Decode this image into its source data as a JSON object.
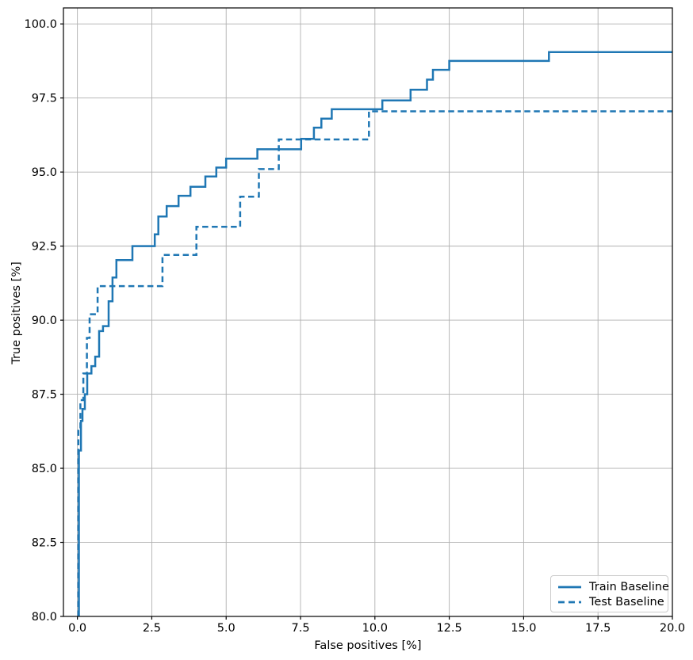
{
  "chart_data": {
    "type": "line",
    "subtype": "roc-step-curves",
    "title": "",
    "xlabel": "False positives [%]",
    "ylabel": "True positives [%]",
    "xlim": [
      -0.47,
      20.0
    ],
    "ylim": [
      80.0,
      100.54
    ],
    "xticks": [
      "0.0",
      "2.5",
      "5.0",
      "7.5",
      "10.0",
      "12.5",
      "15.0",
      "17.5",
      "20.0"
    ],
    "yticks": [
      "80.0",
      "82.5",
      "85.0",
      "87.5",
      "90.0",
      "92.5",
      "95.0",
      "97.5",
      "100.0"
    ],
    "grid": true,
    "legend_position": "lower right",
    "colors": {
      "series": "#1f77b4",
      "grid": "#b0b0b0",
      "spine": "#000000",
      "text": "#000000",
      "legend_border": "#cccccc"
    },
    "series": [
      {
        "name": "Train Baseline",
        "style": "solid",
        "color": "#1f77b4",
        "points": [
          [
            0.05,
            80.0
          ],
          [
            0.05,
            85.6
          ],
          [
            0.12,
            85.6
          ],
          [
            0.12,
            86.6
          ],
          [
            0.17,
            86.6
          ],
          [
            0.17,
            87.0
          ],
          [
            0.25,
            87.0
          ],
          [
            0.25,
            87.5
          ],
          [
            0.33,
            87.5
          ],
          [
            0.33,
            88.2
          ],
          [
            0.47,
            88.2
          ],
          [
            0.47,
            88.45
          ],
          [
            0.6,
            88.45
          ],
          [
            0.6,
            88.77
          ],
          [
            0.73,
            88.77
          ],
          [
            0.73,
            89.63
          ],
          [
            0.86,
            89.63
          ],
          [
            0.86,
            89.8
          ],
          [
            1.05,
            89.8
          ],
          [
            1.05,
            90.64
          ],
          [
            1.18,
            90.64
          ],
          [
            1.18,
            91.44
          ],
          [
            1.31,
            91.44
          ],
          [
            1.31,
            92.03
          ],
          [
            1.85,
            92.03
          ],
          [
            1.85,
            92.5
          ],
          [
            2.6,
            92.5
          ],
          [
            2.6,
            92.9
          ],
          [
            2.72,
            92.9
          ],
          [
            2.72,
            93.5
          ],
          [
            3.0,
            93.5
          ],
          [
            3.0,
            93.85
          ],
          [
            3.4,
            93.85
          ],
          [
            3.4,
            94.2
          ],
          [
            3.8,
            94.2
          ],
          [
            3.8,
            94.5
          ],
          [
            4.3,
            94.5
          ],
          [
            4.3,
            94.85
          ],
          [
            4.67,
            94.85
          ],
          [
            4.67,
            95.15
          ],
          [
            5.0,
            95.15
          ],
          [
            5.0,
            95.45
          ],
          [
            6.05,
            95.45
          ],
          [
            6.05,
            95.77
          ],
          [
            7.52,
            95.77
          ],
          [
            7.52,
            96.12
          ],
          [
            7.95,
            96.12
          ],
          [
            7.95,
            96.5
          ],
          [
            8.2,
            96.5
          ],
          [
            8.2,
            96.8
          ],
          [
            8.55,
            96.8
          ],
          [
            8.55,
            97.12
          ],
          [
            10.25,
            97.12
          ],
          [
            10.25,
            97.42
          ],
          [
            11.2,
            97.42
          ],
          [
            11.2,
            97.78
          ],
          [
            11.75,
            97.78
          ],
          [
            11.75,
            98.12
          ],
          [
            11.95,
            98.12
          ],
          [
            11.95,
            98.45
          ],
          [
            12.5,
            98.45
          ],
          [
            12.5,
            98.75
          ],
          [
            15.85,
            98.75
          ],
          [
            15.85,
            99.05
          ],
          [
            20.0,
            99.05
          ]
        ]
      },
      {
        "name": "Test Baseline",
        "style": "dashed",
        "color": "#1f77b4",
        "points": [
          [
            0.03,
            80.0
          ],
          [
            0.03,
            86.3
          ],
          [
            0.1,
            86.3
          ],
          [
            0.1,
            87.3
          ],
          [
            0.2,
            87.3
          ],
          [
            0.2,
            88.2
          ],
          [
            0.32,
            88.2
          ],
          [
            0.32,
            89.4
          ],
          [
            0.41,
            89.4
          ],
          [
            0.41,
            90.2
          ],
          [
            0.68,
            90.2
          ],
          [
            0.68,
            91.15
          ],
          [
            2.86,
            91.15
          ],
          [
            2.86,
            92.2
          ],
          [
            4.0,
            92.2
          ],
          [
            4.0,
            93.15
          ],
          [
            5.47,
            93.15
          ],
          [
            5.47,
            94.17
          ],
          [
            6.1,
            94.17
          ],
          [
            6.1,
            95.1
          ],
          [
            6.77,
            95.1
          ],
          [
            6.77,
            96.1
          ],
          [
            9.8,
            96.1
          ],
          [
            9.8,
            97.05
          ],
          [
            20.0,
            97.05
          ]
        ]
      }
    ]
  }
}
